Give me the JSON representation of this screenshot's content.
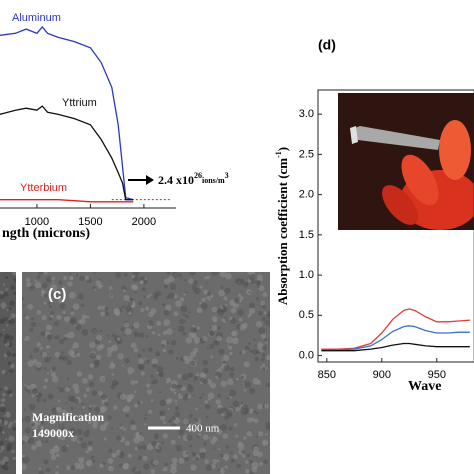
{
  "chart_data": [
    {
      "type": "line",
      "x_label": "ngth (microns)",
      "x": [
        650,
        800,
        900,
        1000,
        1050,
        1100,
        1200,
        1350,
        1500,
        1600,
        1700,
        1760,
        1800,
        1830,
        1900
      ],
      "series": [
        {
          "name": "Aluminum",
          "color": "#2b35c4",
          "values": [
            83,
            84,
            86,
            84,
            87,
            84,
            82,
            80,
            77,
            70,
            58,
            40,
            20,
            5,
            4
          ]
        },
        {
          "name": "Yttrium",
          "color": "#111111",
          "values": [
            45,
            47,
            48,
            47,
            49,
            46,
            45,
            43,
            40,
            33,
            24,
            17,
            12,
            4,
            4
          ]
        },
        {
          "name": "Ytterbium",
          "color": "#e02020",
          "values": [
            4,
            4,
            4,
            4,
            4,
            4,
            4,
            3.5,
            3,
            3,
            3,
            3,
            3,
            3,
            3
          ]
        }
      ],
      "reference_line": 4,
      "annotation": {
        "text": "2.4 x10",
        "exp": "26",
        "unit": "ions/m",
        "unit_exp": "3"
      },
      "xlim": [
        655,
        2300
      ],
      "ylim": [
        0,
        100
      ],
      "xticks": [
        1000,
        1500,
        2000
      ]
    },
    {
      "type": "line",
      "panel_label": "(d)",
      "y_label": "Absorption coefficient (cm",
      "y_label_exp": "-1",
      "y_label_end": ")",
      "x_label": "Wave",
      "x": [
        845,
        860,
        875,
        890,
        900,
        910,
        920,
        925,
        930,
        940,
        950,
        960,
        970,
        980
      ],
      "series": [
        {
          "color": "#d9403a",
          "values": [
            0.08,
            0.08,
            0.09,
            0.15,
            0.28,
            0.45,
            0.56,
            0.58,
            0.56,
            0.48,
            0.42,
            0.42,
            0.43,
            0.44
          ]
        },
        {
          "color": "#3a6fd0",
          "values": [
            0.07,
            0.07,
            0.08,
            0.12,
            0.2,
            0.3,
            0.36,
            0.37,
            0.36,
            0.31,
            0.28,
            0.28,
            0.29,
            0.29
          ]
        },
        {
          "color": "#111111",
          "values": [
            0.06,
            0.06,
            0.06,
            0.08,
            0.1,
            0.13,
            0.15,
            0.15,
            0.14,
            0.12,
            0.11,
            0.11,
            0.11,
            0.11
          ]
        }
      ],
      "xlim": [
        842,
        984
      ],
      "ylim": [
        -0.08,
        3.3
      ],
      "xticks": [
        850,
        900,
        950
      ],
      "yticks": [
        {
          "value": 0,
          "label": "0.0"
        },
        0.5,
        {
          "value": 1,
          "label": "1.0"
        },
        1.5,
        {
          "value": 2,
          "label": "2.0"
        },
        2.5,
        {
          "value": 3,
          "label": "3.0"
        }
      ]
    }
  ],
  "panel_c": {
    "label": "(c)",
    "magnification": "Magnification",
    "magnification_value": "149000x",
    "scale_bar": "400 nm"
  }
}
